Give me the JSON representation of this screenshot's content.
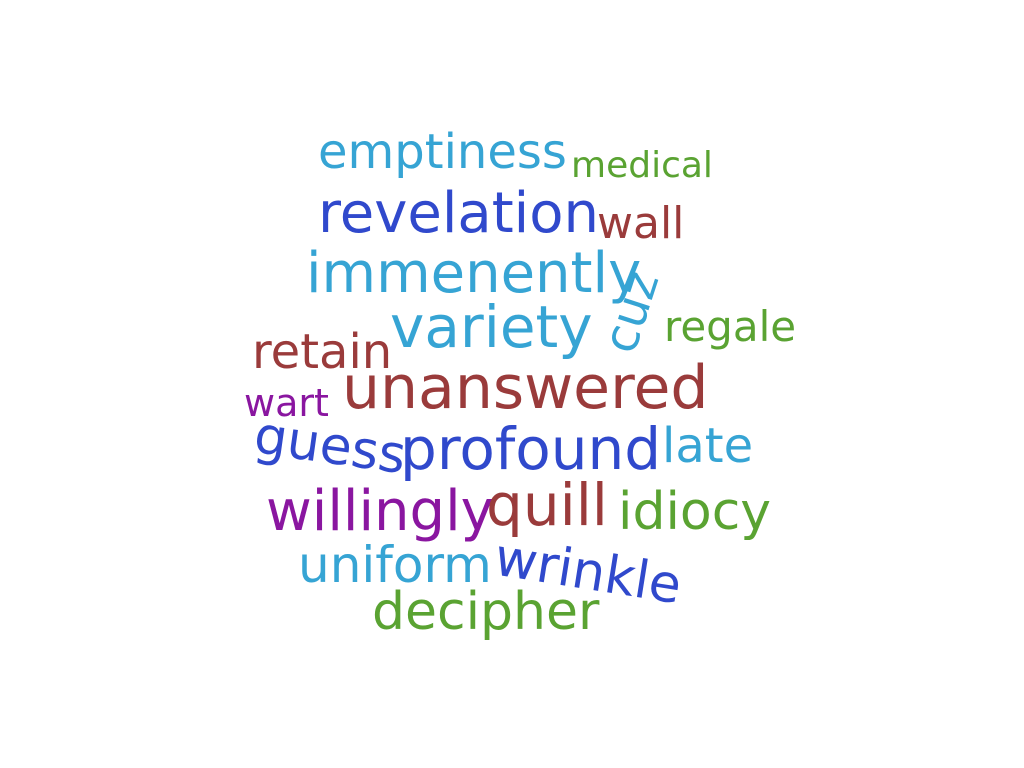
{
  "words": [
    {
      "key": "emptiness",
      "text": "emptiness",
      "color": "#36A4D4"
    },
    {
      "key": "medical",
      "text": "medical",
      "color": "#5AA332"
    },
    {
      "key": "revelation",
      "text": "revelation",
      "color": "#3049CC"
    },
    {
      "key": "wall",
      "text": "wall",
      "color": "#9A3B3B"
    },
    {
      "key": "immenently",
      "text": "immenently",
      "color": "#36A4D4"
    },
    {
      "key": "cuz",
      "text": "cuz",
      "color": "#36A4D4"
    },
    {
      "key": "variety",
      "text": "variety",
      "color": "#36A4D4"
    },
    {
      "key": "regale",
      "text": "regale",
      "color": "#5AA332"
    },
    {
      "key": "retain",
      "text": "retain",
      "color": "#9A3B3B"
    },
    {
      "key": "unanswered",
      "text": "unanswered",
      "color": "#9A3B3B"
    },
    {
      "key": "wart",
      "text": "wart",
      "color": "#8A16A0"
    },
    {
      "key": "guess",
      "text": "guess",
      "color": "#3049CC"
    },
    {
      "key": "profound",
      "text": "profound",
      "color": "#3049CC"
    },
    {
      "key": "late",
      "text": "late",
      "color": "#36A4D4"
    },
    {
      "key": "willingly",
      "text": "willingly",
      "color": "#8A16A0"
    },
    {
      "key": "quill",
      "text": "quill",
      "color": "#9A3B3B"
    },
    {
      "key": "idiocy",
      "text": "idiocy",
      "color": "#5AA332"
    },
    {
      "key": "uniform",
      "text": "uniform",
      "color": "#36A4D4"
    },
    {
      "key": "wrinkle",
      "text": "wrinkle",
      "color": "#3049CC"
    },
    {
      "key": "decipher",
      "text": "decipher",
      "color": "#5AA332"
    }
  ]
}
